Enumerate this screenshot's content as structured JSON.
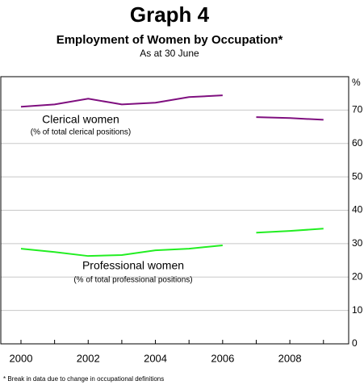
{
  "chart_data": {
    "type": "line",
    "title": "Graph 4",
    "subtitle": "Employment of Women by Occupation*",
    "subtitle2": "As at 30 June",
    "y_unit": "%",
    "footnote": "* Break in data due to change in occupational definitions",
    "x": [
      2000,
      2001,
      2002,
      2003,
      2004,
      2005,
      2006,
      2007,
      2008,
      2009
    ],
    "break_after": 2006,
    "xlim": [
      1999.4,
      2009.75
    ],
    "xticks": [
      2000,
      2002,
      2004,
      2006,
      2008
    ],
    "ylim": [
      0,
      80
    ],
    "yticks": [
      0,
      10,
      20,
      30,
      40,
      50,
      60,
      70
    ],
    "grid": true,
    "series": [
      {
        "name": "Clerical women",
        "description": "(% of total clerical positions)",
        "color": "#7f0f7f",
        "values": [
          71.0,
          71.7,
          73.4,
          71.7,
          72.2,
          73.9,
          74.4,
          67.9,
          67.6,
          67.1
        ]
      },
      {
        "name": "Professional women",
        "description": "(% of total professional positions)",
        "color": "#22ee22",
        "values": [
          28.5,
          27.5,
          26.3,
          26.6,
          28.0,
          28.5,
          29.5,
          33.3,
          33.8,
          34.5
        ]
      }
    ]
  }
}
